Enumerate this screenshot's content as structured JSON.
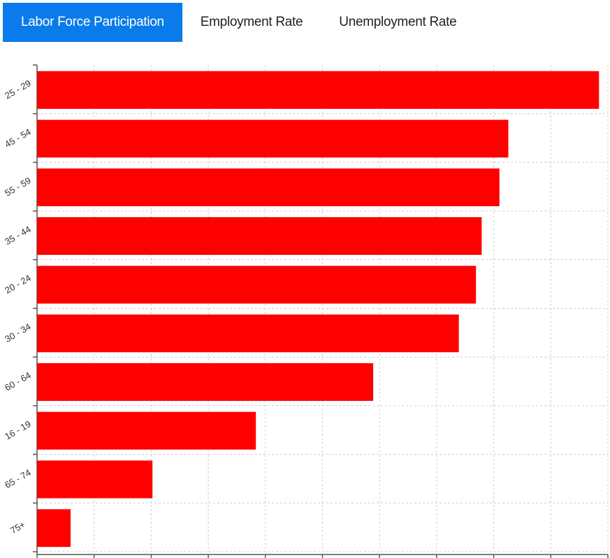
{
  "tabs": [
    {
      "label": "Labor Force Participation",
      "active": true
    },
    {
      "label": "Employment Rate",
      "active": false
    },
    {
      "label": "Unemployment Rate",
      "active": false
    }
  ],
  "colors": {
    "bar": "#ff0000",
    "active_tab": "#0a7bea",
    "grid": "#cccccc",
    "axis": "#555555"
  },
  "chart_data": {
    "type": "bar",
    "orientation": "horizontal",
    "categories": [
      "25 - 29",
      "45 - 54",
      "55 - 59",
      "35 - 44",
      "20 - 24",
      "30 - 34",
      "60 - 64",
      "16 - 19",
      "65 - 74",
      "75+"
    ],
    "values": [
      88.6,
      74.3,
      72.9,
      70.1,
      69.2,
      66.5,
      53.0,
      34.5,
      18.2,
      5.3
    ],
    "xlim": [
      0,
      90
    ],
    "x_gridlines": 10,
    "grid": true,
    "tick_labels_shown": false
  }
}
